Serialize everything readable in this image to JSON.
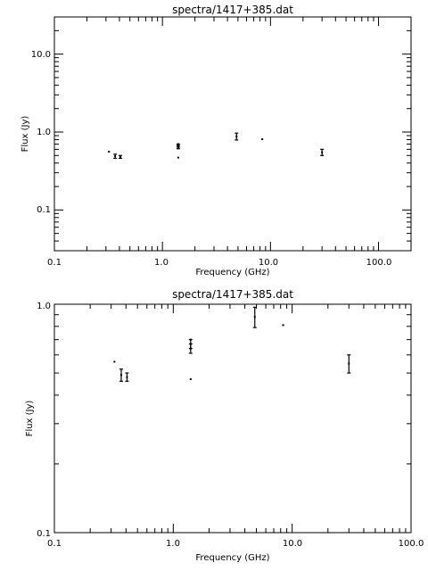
{
  "chart_data": [
    {
      "type": "scatter",
      "title": "spectra/1417+385.dat",
      "xlabel": "Frequency (GHz)",
      "ylabel": "Flux (Jy)",
      "xscale": "log",
      "yscale": "log",
      "xlim": [
        0.1,
        200
      ],
      "ylim": [
        0.03,
        30
      ],
      "x_ticks": [
        "0.1",
        "1.0",
        "10.0",
        "100.0"
      ],
      "y_ticks": [
        "0.1",
        "1.0",
        "10.0"
      ],
      "points": [
        {
          "x": 0.32,
          "y": 0.56,
          "err_lo": 0.0,
          "err_hi": 0.0
        },
        {
          "x": 0.365,
          "y": 0.49,
          "err_lo": 0.03,
          "err_hi": 0.03
        },
        {
          "x": 0.408,
          "y": 0.48,
          "err_lo": 0.02,
          "err_hi": 0.02
        },
        {
          "x": 1.4,
          "y": 0.7,
          "err_lo": 0.0,
          "err_hi": 0.0
        },
        {
          "x": 1.4,
          "y": 0.67,
          "err_lo": 0.03,
          "err_hi": 0.03
        },
        {
          "x": 1.4,
          "y": 0.64,
          "err_lo": 0.03,
          "err_hi": 0.03
        },
        {
          "x": 1.4,
          "y": 0.47,
          "err_lo": 0.0,
          "err_hi": 0.0
        },
        {
          "x": 4.85,
          "y": 0.88,
          "err_lo": 0.09,
          "err_hi": 0.09
        },
        {
          "x": 8.4,
          "y": 0.81,
          "err_lo": 0.0,
          "err_hi": 0.0
        },
        {
          "x": 30.0,
          "y": 0.55,
          "err_lo": 0.05,
          "err_hi": 0.05
        }
      ]
    },
    {
      "type": "scatter",
      "title": "spectra/1417+385.dat",
      "xlabel": "Frequency (GHz)",
      "ylabel": "Flux (Jy)",
      "xscale": "log",
      "yscale": "log",
      "xlim": [
        0.1,
        100
      ],
      "ylim": [
        0.1,
        1.0
      ],
      "x_ticks": [
        "0.1",
        "1.0",
        "10.0",
        "100.0"
      ],
      "y_ticks": [
        "0.1",
        "1.0"
      ],
      "points": [
        {
          "x": 0.32,
          "y": 0.56,
          "err_lo": 0.0,
          "err_hi": 0.0
        },
        {
          "x": 0.365,
          "y": 0.49,
          "err_lo": 0.03,
          "err_hi": 0.03
        },
        {
          "x": 0.408,
          "y": 0.48,
          "err_lo": 0.02,
          "err_hi": 0.02
        },
        {
          "x": 1.4,
          "y": 0.7,
          "err_lo": 0.0,
          "err_hi": 0.0
        },
        {
          "x": 1.4,
          "y": 0.67,
          "err_lo": 0.03,
          "err_hi": 0.03
        },
        {
          "x": 1.4,
          "y": 0.64,
          "err_lo": 0.03,
          "err_hi": 0.03
        },
        {
          "x": 1.4,
          "y": 0.47,
          "err_lo": 0.0,
          "err_hi": 0.0
        },
        {
          "x": 4.85,
          "y": 0.88,
          "err_lo": 0.09,
          "err_hi": 0.09
        },
        {
          "x": 8.4,
          "y": 0.81,
          "err_lo": 0.0,
          "err_hi": 0.0
        },
        {
          "x": 30.0,
          "y": 0.55,
          "err_lo": 0.05,
          "err_hi": 0.05
        }
      ]
    }
  ]
}
